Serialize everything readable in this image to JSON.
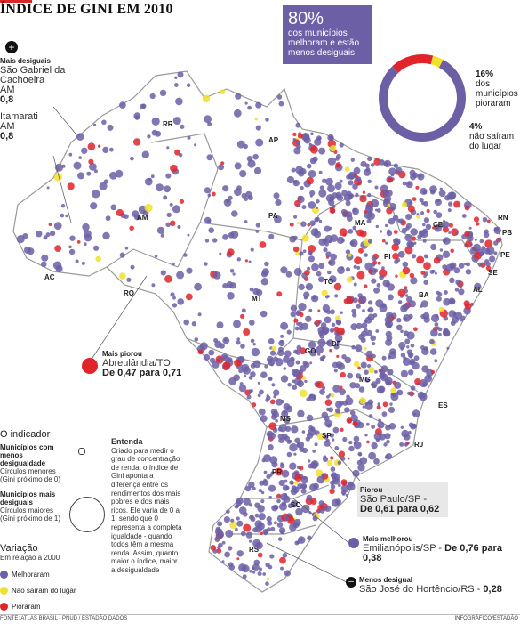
{
  "title": "ÍNDICE DE GINI EM 2010",
  "summary": {
    "improved_pct": "80%",
    "improved_text": "dos municípios melhoram e estão menos desiguais",
    "worse_pct": "16%",
    "worse_text": "dos municípios pioraram",
    "same_pct": "4%",
    "same_text": "não saíram do lugar",
    "shares": [
      0.8,
      0.16,
      0.04
    ]
  },
  "colors": {
    "improved": "#6c5fa6",
    "worse": "#e0242a",
    "same": "#f2e12b",
    "border": "#9a9a9a"
  },
  "mais_desiguais": {
    "header": "Mais desiguais",
    "item1_name": "São Gabriel da Cachoeira",
    "item1_state": "AM",
    "item1_value": "0,8",
    "item2_name": "Itamarati",
    "item2_state": "AM",
    "item2_value": "0,8"
  },
  "mais_piorou": {
    "header": "Mais piorou",
    "name": "Abreulândia/TO",
    "change": "De 0,47 para 0,71"
  },
  "piorou": {
    "header": "Piorou",
    "name": "São Paulo/SP -",
    "change": "De 0,61 para 0,62"
  },
  "mais_melhorou": {
    "header": "Mais melhorou",
    "name": "Emilianópolis/SP -",
    "change": "De 0,76 para 0,38"
  },
  "menos_desigual": {
    "header": "Menos desigual",
    "name": "São José do Hortêncio/RS -",
    "value": "0,28"
  },
  "states": [
    "RR",
    "AP",
    "AM",
    "PA",
    "MA",
    "CE",
    "RN",
    "PB",
    "PE",
    "AL",
    "SE",
    "PI",
    "TO",
    "BA",
    "AC",
    "RO",
    "MT",
    "GO",
    "DF",
    "MG",
    "ES",
    "MS",
    "SP",
    "RJ",
    "PR",
    "SC",
    "RS"
  ],
  "indicator": {
    "title": "O indicador",
    "less_header": "Municípios com menos desigualdade",
    "less_sub": "Círculos menores (Gini próximo de 0)",
    "more_header": "Municípios mais desiguais",
    "more_sub": "Círculos maiores (Gini próximo de 1)",
    "entenda_title": "Entenda",
    "entenda_text": "Criado para medir o grau de concentração de renda, o índice de Gini aponta a diferença entre os rendimentos dos mais pobres e dos mais ricos. Ele varia de 0 a 1, sendo que 0 representa a completa igualdade - quando todos têm a mesma renda. Assim, quanto maior o índice, maior a desigualdade"
  },
  "variacao": {
    "title": "Variação",
    "sub": "Em relação a 2000",
    "items": [
      "Melhoraram",
      "Não saíram do lugar",
      "Pioraram"
    ]
  },
  "footer": {
    "source": "FONTE: ATLAS BRASIL - PNUD / ESTADÃO DADOS",
    "credit": "INFOGRÁFICO/ESTADÃO"
  }
}
